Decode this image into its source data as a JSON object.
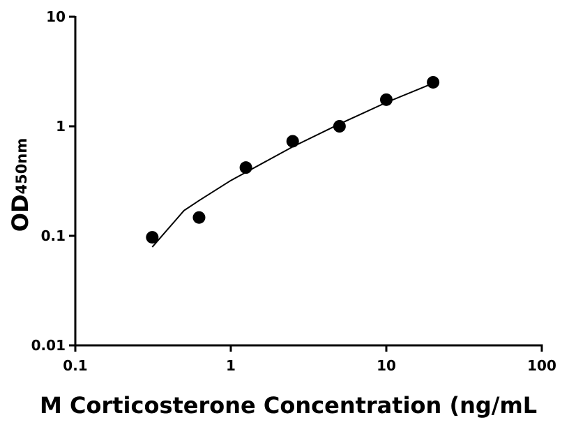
{
  "chart_data": {
    "type": "scatter",
    "x_label": "M Corticosterone Concentration (ng/mL",
    "y_label": "OD",
    "y_label_sub": "450nm",
    "xlog": true,
    "ylog": true,
    "xlim": [
      0.1,
      100
    ],
    "xticks": [
      0.1,
      1,
      10,
      100
    ],
    "ylim": [
      0.01,
      10
    ],
    "yticks": [
      0.01,
      0.1,
      1,
      10
    ],
    "series": [
      {
        "kind": "points",
        "color": "#000000",
        "x": [
          0.3125,
          0.625,
          1.25,
          2.5,
          5,
          10,
          20
        ],
        "values": [
          0.097,
          0.147,
          0.42,
          0.73,
          1.0,
          1.75,
          2.52
        ]
      },
      {
        "kind": "fit",
        "color": "#000000",
        "x": [
          0.3125,
          0.5,
          0.625,
          1,
          1.25,
          2.5,
          5,
          10,
          20
        ],
        "values": [
          0.079,
          0.17,
          0.21,
          0.32,
          0.38,
          0.65,
          1.05,
          1.65,
          2.47
        ]
      }
    ]
  }
}
